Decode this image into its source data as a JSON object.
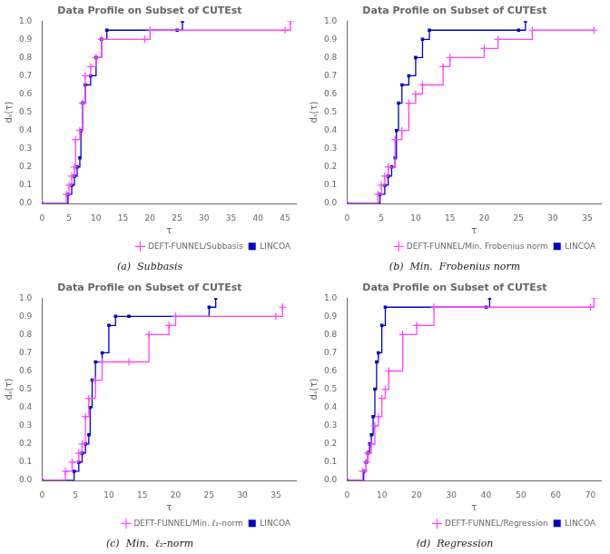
{
  "chart_data": [
    {
      "type": "step",
      "title": "Data Profile on Subset of CUTEst",
      "subtitle": "(a)  Subbasis",
      "xlabel": "τ",
      "ylabel": "dₛ(τ)",
      "xlim": [
        0,
        47
      ],
      "xticks": [
        0,
        5,
        10,
        15,
        20,
        25,
        30,
        35,
        40,
        45
      ],
      "ylim": [
        0,
        1.0
      ],
      "yticks": [
        {
          "value": 0,
          "label": "0.0"
        },
        0.1,
        0.2,
        0.3,
        0.4,
        0.5,
        0.6,
        0.7,
        0.8,
        0.9,
        {
          "value": 1.0,
          "label": "1.0"
        }
      ],
      "grid": false,
      "legend": "lower right",
      "series": [
        {
          "name": "DEFT-FUNNEL/Subbasis",
          "color": "#ff44ff",
          "marker": "plus",
          "line_style": "solid",
          "x": [
            0,
            4.5,
            5.0,
            5.5,
            6.0,
            6.2,
            7.0,
            7.5,
            8.0,
            9.0,
            10.0,
            11.0,
            19.0,
            20.0,
            45.0,
            46.0
          ],
          "values": [
            0,
            0.05,
            0.1,
            0.15,
            0.2,
            0.35,
            0.4,
            0.55,
            0.7,
            0.75,
            0.8,
            0.9,
            0.9,
            0.95,
            0.95,
            1.0
          ]
        },
        {
          "name": "LINCOA",
          "color": "#0000cc",
          "marker": "square",
          "line_style": "solid",
          "x": [
            0,
            4.8,
            5.5,
            6.0,
            6.5,
            7.0,
            7.2,
            7.5,
            8.0,
            9.0,
            10.0,
            11.0,
            12.0,
            25.0,
            26.0
          ],
          "values": [
            0,
            0.05,
            0.1,
            0.15,
            0.2,
            0.25,
            0.4,
            0.55,
            0.65,
            0.7,
            0.8,
            0.9,
            0.95,
            0.95,
            1.0
          ]
        }
      ]
    },
    {
      "type": "step",
      "title": "Data Profile on Subset of CUTEst",
      "subtitle": "(b)  Min.  Frobenius norm",
      "xlabel": "τ",
      "ylabel": "dₛ(τ)",
      "xlim": [
        0,
        37
      ],
      "xticks": [
        0,
        5,
        10,
        15,
        20,
        25,
        30,
        35
      ],
      "ylim": [
        0,
        1.0
      ],
      "yticks": [
        {
          "value": 0,
          "label": "0.0"
        },
        0.1,
        0.2,
        0.3,
        0.4,
        0.5,
        0.6,
        0.7,
        0.8,
        0.9,
        {
          "value": 1.0,
          "label": "1.0"
        }
      ],
      "grid": false,
      "legend": "lower right",
      "series": [
        {
          "name": "DEFT-FUNNEL/Min. Frobenius norm",
          "color": "#ff44ff",
          "marker": "plus",
          "line_style": "solid",
          "x": [
            0,
            4.5,
            5.0,
            5.5,
            6.0,
            7.0,
            8.0,
            9.0,
            10.0,
            11.0,
            14.0,
            15.0,
            20.0,
            22.0,
            27.0,
            36.0
          ],
          "values": [
            0,
            0.05,
            0.1,
            0.15,
            0.2,
            0.35,
            0.4,
            0.55,
            0.6,
            0.65,
            0.75,
            0.8,
            0.85,
            0.9,
            0.95,
            0.95
          ]
        },
        {
          "name": "LINCOA",
          "color": "#0000cc",
          "marker": "square",
          "line_style": "solid",
          "x": [
            0,
            4.8,
            5.5,
            6.0,
            6.5,
            7.0,
            7.2,
            7.5,
            8.0,
            9.0,
            10.0,
            11.0,
            12.0,
            25.0,
            26.0
          ],
          "values": [
            0,
            0.05,
            0.1,
            0.15,
            0.2,
            0.25,
            0.4,
            0.55,
            0.65,
            0.7,
            0.8,
            0.9,
            0.95,
            0.95,
            1.0
          ]
        }
      ]
    },
    {
      "type": "step",
      "title": "Data Profile on Subset of CUTEst",
      "subtitle": "(c)  Min.  ℓ₂-norm",
      "xlabel": "τ",
      "ylabel": "dₛ(τ)",
      "xlim": [
        0,
        38
      ],
      "xticks": [
        0,
        5,
        10,
        15,
        20,
        25,
        30,
        35
      ],
      "ylim": [
        0,
        1.0
      ],
      "yticks": [
        {
          "value": 0,
          "label": "0.0"
        },
        0.1,
        0.2,
        0.3,
        0.4,
        0.5,
        0.6,
        0.7,
        0.8,
        0.9,
        {
          "value": 1.0,
          "label": "1.0"
        }
      ],
      "grid": false,
      "legend": "lower right",
      "series": [
        {
          "name": "DEFT-FUNNEL/Min. ℓ₂-norm",
          "color": "#ff44ff",
          "marker": "plus",
          "line_style": "solid",
          "x": [
            0,
            3.5,
            4.5,
            5.5,
            6.0,
            6.5,
            7.0,
            8.0,
            9.0,
            13.0,
            16.0,
            19.0,
            20.0,
            35.0,
            36.0
          ],
          "values": [
            0,
            0.05,
            0.1,
            0.15,
            0.2,
            0.35,
            0.45,
            0.55,
            0.65,
            0.65,
            0.8,
            0.85,
            0.9,
            0.9,
            0.95
          ]
        },
        {
          "name": "LINCOA",
          "color": "#0000cc",
          "marker": "square",
          "line_style": "solid",
          "x": [
            0,
            4.8,
            5.5,
            6.0,
            6.5,
            7.0,
            7.2,
            7.5,
            8.0,
            9.0,
            10.0,
            11.0,
            13.0,
            25.0,
            26.0
          ],
          "values": [
            0,
            0.05,
            0.1,
            0.15,
            0.2,
            0.25,
            0.4,
            0.55,
            0.65,
            0.7,
            0.85,
            0.9,
            0.9,
            0.95,
            1.0
          ]
        }
      ]
    },
    {
      "type": "step",
      "title": "Data Profile on Subset of CUTEst",
      "subtitle": "(d)  Regression",
      "xlabel": "τ",
      "ylabel": "dₛ(τ)",
      "xlim": [
        0,
        73
      ],
      "xticks": [
        0,
        10,
        20,
        30,
        40,
        50,
        60,
        70
      ],
      "ylim": [
        0,
        1.0
      ],
      "yticks": [
        {
          "value": 0,
          "label": "0.0"
        },
        0.1,
        0.2,
        0.3,
        0.4,
        0.5,
        0.6,
        0.7,
        0.8,
        0.9,
        {
          "value": 1.0,
          "label": "1.0"
        }
      ],
      "grid": false,
      "legend": "lower right",
      "series": [
        {
          "name": "DEFT-FUNNEL/Regression",
          "color": "#ff44ff",
          "marker": "plus",
          "line_style": "solid",
          "x": [
            0,
            4.5,
            5.5,
            6.0,
            7.0,
            8.0,
            9.0,
            10.0,
            11.0,
            12.0,
            16.0,
            20.0,
            25.0,
            70.0,
            71.0
          ],
          "values": [
            0,
            0.05,
            0.1,
            0.15,
            0.2,
            0.3,
            0.35,
            0.45,
            0.5,
            0.6,
            0.8,
            0.85,
            0.95,
            0.95,
            1.0
          ]
        },
        {
          "name": "LINCOA",
          "color": "#0000cc",
          "marker": "square",
          "line_style": "solid",
          "x": [
            0,
            4.8,
            5.5,
            6.0,
            6.5,
            7.0,
            7.5,
            8.0,
            8.5,
            9.0,
            10.0,
            11.0,
            40.0,
            41.0
          ],
          "values": [
            0,
            0.05,
            0.1,
            0.15,
            0.2,
            0.25,
            0.35,
            0.5,
            0.65,
            0.7,
            0.85,
            0.95,
            0.95,
            1.0
          ]
        }
      ]
    }
  ]
}
